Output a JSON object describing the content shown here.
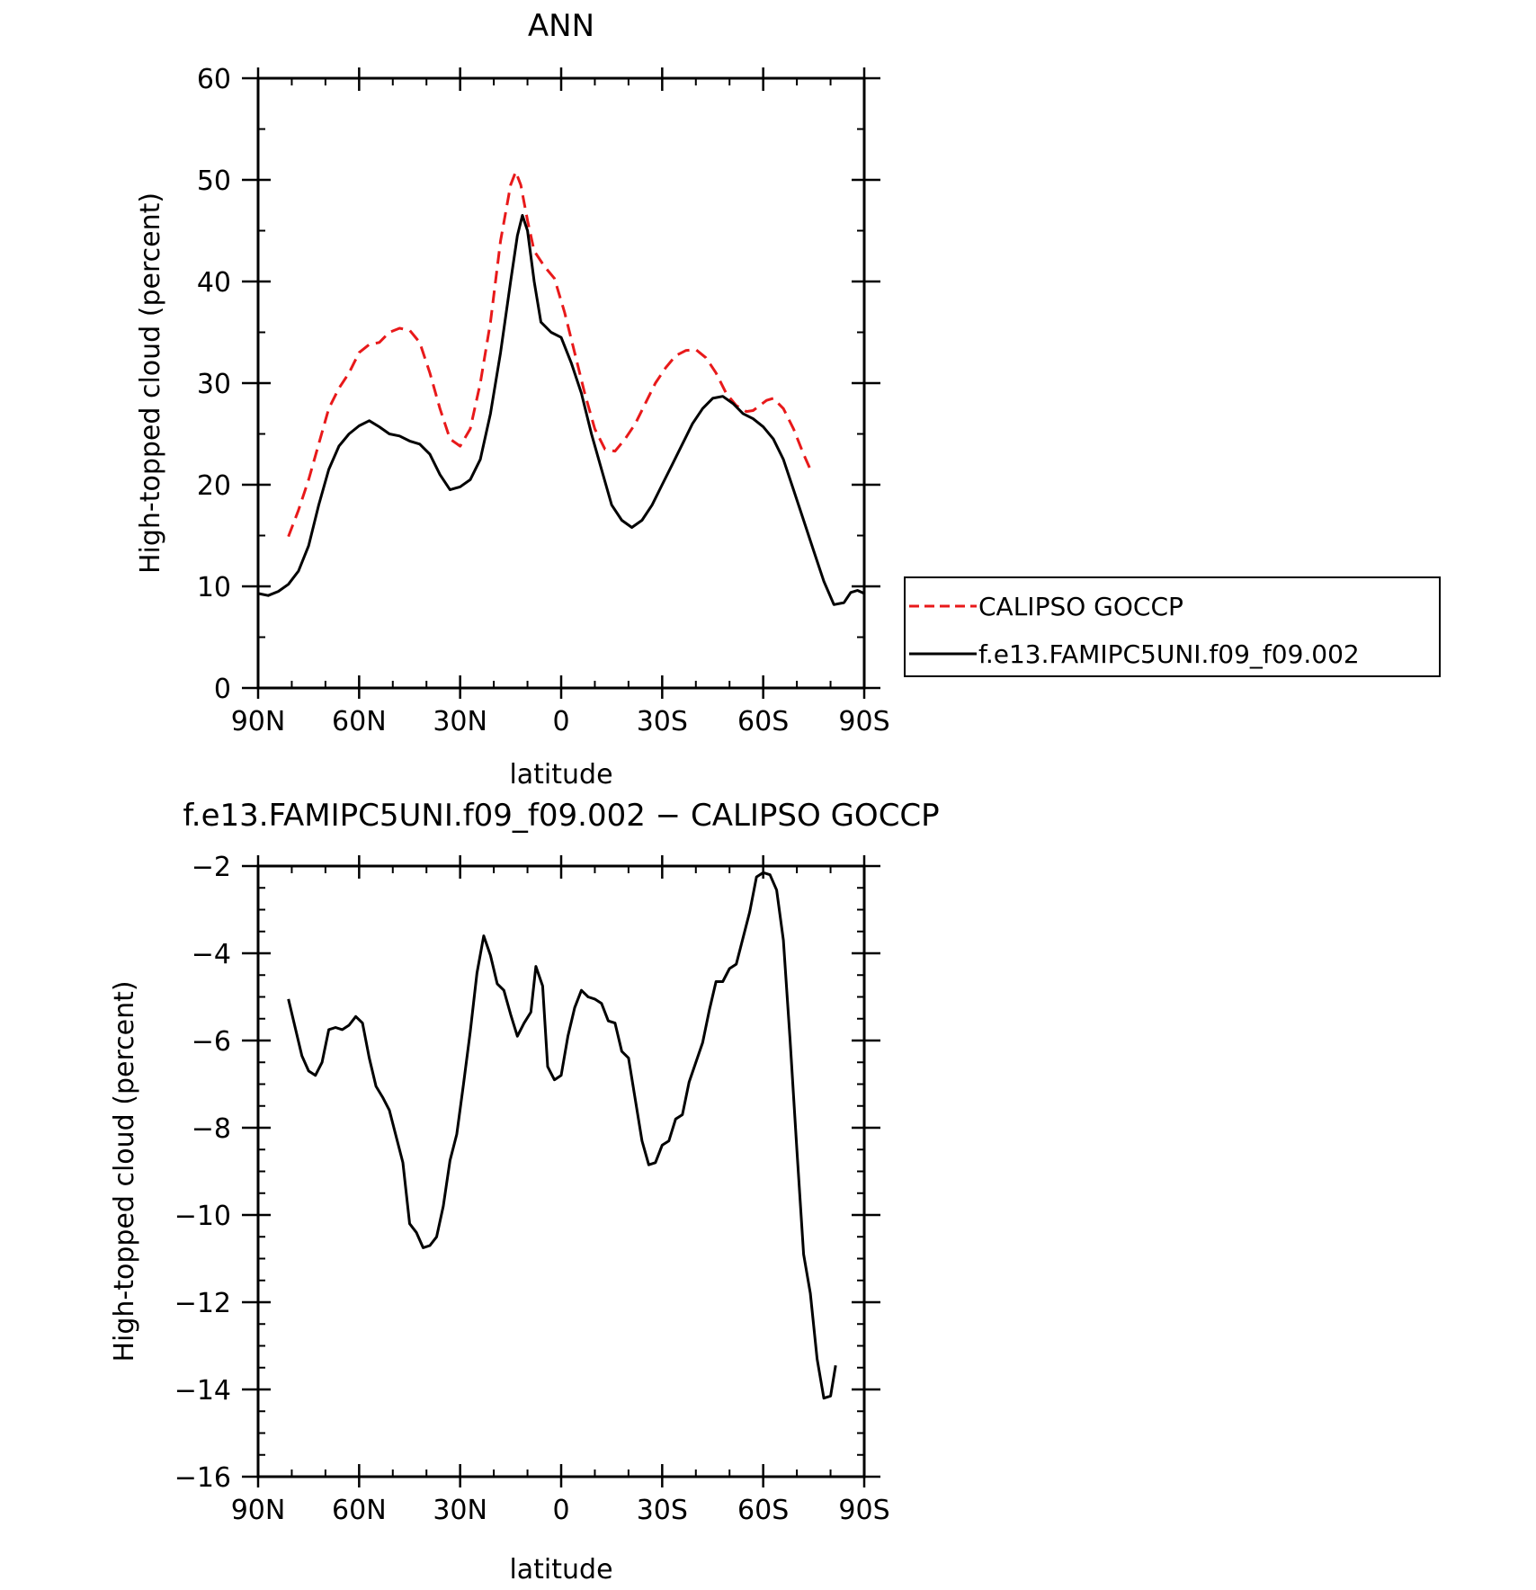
{
  "chart_data": [
    {
      "type": "line",
      "title": "ANN",
      "xlabel": "latitude",
      "ylabel": "High-topped cloud (percent)",
      "ylim": [
        0,
        60
      ],
      "xlim": [
        -90,
        90
      ],
      "xticks": [
        -90,
        -60,
        -30,
        0,
        30,
        60,
        90
      ],
      "xtick_labels": [
        "90N",
        "60N",
        "30N",
        "0",
        "30S",
        "60S",
        "90S"
      ],
      "yticks": [
        0,
        10,
        20,
        30,
        40,
        50,
        60
      ],
      "ytick_labels": [
        "0",
        "10",
        "20",
        "30",
        "40",
        "50",
        "60"
      ],
      "grid": false,
      "legend": {
        "placement": "right",
        "entries": [
          "CALIPSO GOCCP",
          "f.e13.FAMIPC5UNI.f09_f09.002"
        ]
      },
      "series": [
        {
          "name": "CALIPSO GOCCP",
          "color": "#e8191a",
          "dash": "dashed",
          "points": [
            [
              -81,
              14.9
            ],
            [
              -78,
              17.5
            ],
            [
              -75,
              20.5
            ],
            [
              -72,
              24
            ],
            [
              -69,
              27.5
            ],
            [
              -66,
              29.5
            ],
            [
              -63,
              31
            ],
            [
              -60,
              33
            ],
            [
              -57,
              33.8
            ],
            [
              -54,
              34
            ],
            [
              -51,
              35
            ],
            [
              -48,
              35.4
            ],
            [
              -45,
              35.2
            ],
            [
              -42,
              34
            ],
            [
              -39,
              31
            ],
            [
              -36,
              27.5
            ],
            [
              -33,
              24.5
            ],
            [
              -30,
              23.8
            ],
            [
              -27,
              25.5
            ],
            [
              -24,
              30
            ],
            [
              -21,
              36
            ],
            [
              -18,
              44
            ],
            [
              -15,
              49.5
            ],
            [
              -13.5,
              50.8
            ],
            [
              -12,
              49.5
            ],
            [
              -10,
              46
            ],
            [
              -8,
              43
            ],
            [
              -5,
              41.5
            ],
            [
              -2,
              40.3
            ],
            [
              1,
              37
            ],
            [
              4,
              33
            ],
            [
              7,
              29
            ],
            [
              10,
              25.5
            ],
            [
              13,
              23.5
            ],
            [
              16,
              23.3
            ],
            [
              19,
              24.5
            ],
            [
              22,
              26
            ],
            [
              25,
              28
            ],
            [
              28,
              30
            ],
            [
              31,
              31.5
            ],
            [
              34,
              32.7
            ],
            [
              37,
              33.2
            ],
            [
              40,
              33.3
            ],
            [
              43,
              32.5
            ],
            [
              46,
              31
            ],
            [
              49,
              29
            ],
            [
              52,
              27.8
            ],
            [
              55,
              27.2
            ],
            [
              57,
              27.3
            ],
            [
              59,
              27.8
            ],
            [
              61,
              28.3
            ],
            [
              63,
              28.5
            ],
            [
              66,
              27.5
            ],
            [
              69,
              25.5
            ],
            [
              72,
              23
            ],
            [
              74,
              21.5
            ]
          ]
        },
        {
          "name": "f.e13.FAMIPC5UNI.f09_f09.002",
          "color": "#000000",
          "dash": "solid",
          "points": [
            [
              -90,
              9.3
            ],
            [
              -87,
              9.1
            ],
            [
              -84,
              9.5
            ],
            [
              -81,
              10.2
            ],
            [
              -78,
              11.5
            ],
            [
              -75,
              14
            ],
            [
              -72,
              18
            ],
            [
              -69,
              21.5
            ],
            [
              -66,
              23.8
            ],
            [
              -63,
              25
            ],
            [
              -60,
              25.8
            ],
            [
              -57,
              26.3
            ],
            [
              -54,
              25.7
            ],
            [
              -51,
              25
            ],
            [
              -48,
              24.8
            ],
            [
              -45,
              24.3
            ],
            [
              -42,
              24
            ],
            [
              -39,
              23
            ],
            [
              -36,
              21
            ],
            [
              -33,
              19.5
            ],
            [
              -30,
              19.8
            ],
            [
              -27,
              20.5
            ],
            [
              -24,
              22.5
            ],
            [
              -21,
              27
            ],
            [
              -18,
              33
            ],
            [
              -15,
              40
            ],
            [
              -13,
              44.5
            ],
            [
              -11.5,
              46.5
            ],
            [
              -10,
              45
            ],
            [
              -8,
              40
            ],
            [
              -6,
              36
            ],
            [
              -3,
              35
            ],
            [
              0,
              34.5
            ],
            [
              3,
              32
            ],
            [
              6,
              29
            ],
            [
              9,
              25
            ],
            [
              12,
              21.5
            ],
            [
              15,
              18
            ],
            [
              18,
              16.5
            ],
            [
              21,
              15.8
            ],
            [
              24,
              16.5
            ],
            [
              27,
              18
            ],
            [
              30,
              20
            ],
            [
              33,
              22
            ],
            [
              36,
              24
            ],
            [
              39,
              26
            ],
            [
              42,
              27.5
            ],
            [
              45,
              28.5
            ],
            [
              48,
              28.7
            ],
            [
              51,
              28
            ],
            [
              54,
              27
            ],
            [
              57,
              26.5
            ],
            [
              60,
              25.7
            ],
            [
              63,
              24.5
            ],
            [
              66,
              22.5
            ],
            [
              69,
              19.5
            ],
            [
              72,
              16.5
            ],
            [
              75,
              13.5
            ],
            [
              78,
              10.5
            ],
            [
              81,
              8.2
            ],
            [
              84,
              8.4
            ],
            [
              86,
              9.4
            ],
            [
              88,
              9.6
            ],
            [
              90,
              9.3
            ]
          ]
        }
      ]
    },
    {
      "type": "line",
      "title": "f.e13.FAMIPC5UNI.f09_f09.002 − CALIPSO GOCCP",
      "xlabel": "latitude",
      "ylabel": "High-topped cloud (percent)",
      "ylim": [
        -16,
        -2
      ],
      "xlim": [
        -90,
        90
      ],
      "xticks": [
        -90,
        -60,
        -30,
        0,
        30,
        60,
        90
      ],
      "xtick_labels": [
        "90N",
        "60N",
        "30N",
        "0",
        "30S",
        "60S",
        "90S"
      ],
      "yticks": [
        -16,
        -14,
        -12,
        -10,
        -8,
        -6,
        -4,
        -2
      ],
      "ytick_labels": [
        "−16",
        "−14",
        "−12",
        "−10",
        "−8",
        "−6",
        "−4",
        "−2"
      ],
      "grid": false,
      "series": [
        {
          "color": "#000000",
          "dash": "solid",
          "points": [
            [
              -81,
              -5.05
            ],
            [
              -79,
              -5.7
            ],
            [
              -77,
              -6.35
            ],
            [
              -75,
              -6.7
            ],
            [
              -73,
              -6.8
            ],
            [
              -71,
              -6.5
            ],
            [
              -69,
              -5.75
            ],
            [
              -67,
              -5.7
            ],
            [
              -65,
              -5.75
            ],
            [
              -63,
              -5.65
            ],
            [
              -61,
              -5.45
            ],
            [
              -59,
              -5.6
            ],
            [
              -57,
              -6.4
            ],
            [
              -55,
              -7.05
            ],
            [
              -53,
              -7.3
            ],
            [
              -51,
              -7.6
            ],
            [
              -49,
              -8.2
            ],
            [
              -47,
              -8.8
            ],
            [
              -45,
              -10.2
            ],
            [
              -43,
              -10.4
            ],
            [
              -41,
              -10.75
            ],
            [
              -39,
              -10.7
            ],
            [
              -37,
              -10.5
            ],
            [
              -35,
              -9.8
            ],
            [
              -33,
              -8.75
            ],
            [
              -31,
              -8.15
            ],
            [
              -29,
              -7
            ],
            [
              -27,
              -5.8
            ],
            [
              -25,
              -4.45
            ],
            [
              -23,
              -3.6
            ],
            [
              -21,
              -4.05
            ],
            [
              -19,
              -4.7
            ],
            [
              -17,
              -4.85
            ],
            [
              -15,
              -5.4
            ],
            [
              -13,
              -5.9
            ],
            [
              -11,
              -5.6
            ],
            [
              -9,
              -5.35
            ],
            [
              -7.5,
              -4.3
            ],
            [
              -5.5,
              -4.75
            ],
            [
              -4,
              -6.6
            ],
            [
              -2,
              -6.9
            ],
            [
              0,
              -6.8
            ],
            [
              2,
              -5.9
            ],
            [
              4,
              -5.25
            ],
            [
              6,
              -4.85
            ],
            [
              8,
              -5.0
            ],
            [
              10,
              -5.05
            ],
            [
              12,
              -5.15
            ],
            [
              14,
              -5.55
            ],
            [
              16,
              -5.6
            ],
            [
              18,
              -6.25
            ],
            [
              20,
              -6.4
            ],
            [
              22,
              -7.35
            ],
            [
              24,
              -8.3
            ],
            [
              26,
              -8.85
            ],
            [
              28,
              -8.8
            ],
            [
              30,
              -8.4
            ],
            [
              32,
              -8.3
            ],
            [
              34,
              -7.8
            ],
            [
              36,
              -7.7
            ],
            [
              38,
              -6.95
            ],
            [
              40,
              -6.5
            ],
            [
              42,
              -6.05
            ],
            [
              44,
              -5.3
            ],
            [
              46,
              -4.65
            ],
            [
              48,
              -4.65
            ],
            [
              50,
              -4.35
            ],
            [
              52,
              -4.25
            ],
            [
              54,
              -3.65
            ],
            [
              56,
              -3.05
            ],
            [
              58,
              -2.25
            ],
            [
              60,
              -2.15
            ],
            [
              62,
              -2.2
            ],
            [
              64,
              -2.55
            ],
            [
              66,
              -3.7
            ],
            [
              68,
              -6.0
            ],
            [
              70,
              -8.5
            ],
            [
              72,
              -10.9
            ],
            [
              74,
              -11.8
            ],
            [
              76,
              -13.3
            ],
            [
              78,
              -14.2
            ],
            [
              80,
              -14.15
            ],
            [
              81.5,
              -13.45
            ]
          ]
        }
      ]
    }
  ]
}
